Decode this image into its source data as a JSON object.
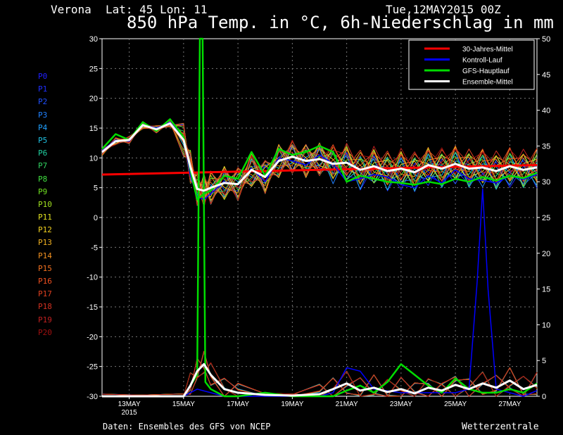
{
  "header": {
    "station": "Verona",
    "coords": "Lat: 45 Lon: 11",
    "run": "Tue,12MAY2015 00Z",
    "title": "850 hPa Temp. in °C, 6h-Niederschlag in mm"
  },
  "members": [
    {
      "label": "P0",
      "color": "#2020ff"
    },
    {
      "label": "P1",
      "color": "#2030ff"
    },
    {
      "label": "P2",
      "color": "#2050ff"
    },
    {
      "label": "P3",
      "color": "#2080ff"
    },
    {
      "label": "P4",
      "color": "#20a0ff"
    },
    {
      "label": "P5",
      "color": "#20c0e0"
    },
    {
      "label": "P6",
      "color": "#20d0a0"
    },
    {
      "label": "P7",
      "color": "#30d060"
    },
    {
      "label": "P8",
      "color": "#40e040"
    },
    {
      "label": "P9",
      "color": "#70e020"
    },
    {
      "label": "P10",
      "color": "#a0e020"
    },
    {
      "label": "P11",
      "color": "#e0e020"
    },
    {
      "label": "P12",
      "color": "#f0d020"
    },
    {
      "label": "P13",
      "color": "#f0b020"
    },
    {
      "label": "P14",
      "color": "#f09020"
    },
    {
      "label": "P15",
      "color": "#f07020"
    },
    {
      "label": "P16",
      "color": "#f05020"
    },
    {
      "label": "P17",
      "color": "#e04020"
    },
    {
      "label": "P18",
      "color": "#d03020"
    },
    {
      "label": "P19",
      "color": "#c02020"
    },
    {
      "label": "P20",
      "color": "#a01010"
    }
  ],
  "legend": [
    {
      "label": "30-Jahres-Mittel",
      "color": "#ff0000"
    },
    {
      "label": "Kontroll-Lauf",
      "color": "#0000ff"
    },
    {
      "label": "GFS-Hauptlauf",
      "color": "#00dd00"
    },
    {
      "label": "Ensemble-Mittel",
      "color": "#ffffff"
    }
  ],
  "footer": {
    "source": "Daten: Ensembles des GFS von NCEP",
    "brand": "Wetterzentrale"
  },
  "chart_data": {
    "type": "line",
    "title": "850 hPa Temp. in °C, 6h-Niederschlag in mm",
    "x_ticks": [
      "13MAY",
      "15MAY",
      "17MAY",
      "19MAY",
      "21MAY",
      "23MAY",
      "25MAY",
      "27MAY"
    ],
    "x_tick_extra": {
      "13MAY": "2015"
    },
    "x_range_days": [
      12.0,
      28.0
    ],
    "y_left": {
      "ticks": [
        30,
        25,
        20,
        15,
        10,
        5,
        0,
        -5,
        -10,
        -15,
        -20,
        -25,
        -30
      ],
      "range": [
        -30,
        30
      ],
      "unit": "°C"
    },
    "y_right": {
      "ticks": [
        50,
        45,
        40,
        35,
        30,
        25,
        20,
        15,
        10,
        5,
        0
      ],
      "range": [
        0,
        50
      ],
      "unit": "mm"
    },
    "grid": true,
    "legend_position": "top-right",
    "climate_mean": {
      "name": "30-Jahres-Mittel",
      "x": [
        12.0,
        28.0
      ],
      "y": [
        7.2,
        8.8
      ]
    },
    "ensemble_mean_temp": {
      "name": "Ensemble-Mittel",
      "x": [
        12.0,
        12.5,
        13.0,
        13.5,
        14.0,
        14.5,
        15.0,
        15.25,
        15.5,
        15.75,
        16.0,
        16.5,
        17.0,
        17.5,
        18.0,
        18.5,
        19.0,
        19.5,
        20.0,
        20.5,
        21.0,
        21.5,
        22.0,
        22.5,
        23.0,
        23.5,
        24.0,
        24.5,
        25.0,
        25.5,
        26.0,
        26.5,
        27.0,
        27.5,
        28.0
      ],
      "y": [
        11.0,
        12.8,
        13.0,
        15.5,
        14.8,
        15.8,
        13.0,
        8.5,
        4.8,
        4.5,
        5.0,
        5.8,
        5.6,
        8.0,
        6.8,
        9.5,
        10.2,
        9.5,
        9.8,
        9.0,
        9.2,
        8.0,
        8.6,
        7.8,
        8.2,
        7.6,
        8.8,
        8.2,
        9.0,
        8.2,
        8.4,
        7.8,
        8.6,
        8.0,
        8.4
      ]
    },
    "control_run_temp": {
      "name": "Kontroll-Lauf",
      "x": [
        12.0,
        12.5,
        13.0,
        13.5,
        14.0,
        14.5,
        15.0,
        15.25,
        15.5,
        15.75,
        16.0,
        16.5,
        17.0,
        17.5,
        18.0,
        18.5,
        19.0,
        19.5,
        20.0,
        20.5,
        21.0,
        21.5,
        22.0,
        22.5,
        23.0,
        23.5,
        24.0,
        24.5,
        25.0,
        25.5,
        26.0,
        26.5,
        27.0,
        27.5,
        28.0
      ],
      "y": [
        11.2,
        13.0,
        12.8,
        15.6,
        15.0,
        16.0,
        13.4,
        7.0,
        3.5,
        3.0,
        4.0,
        6.0,
        5.5,
        8.2,
        6.0,
        10.0,
        9.5,
        8.8,
        10.5,
        9.0,
        6.0,
        6.5,
        7.2,
        6.8,
        5.5,
        5.0,
        7.0,
        5.8,
        8.0,
        6.5,
        6.2,
        5.8,
        7.0,
        6.4,
        7.2
      ]
    },
    "gfs_main_temp": {
      "name": "GFS-Hauptlauf",
      "x": [
        12.0,
        12.5,
        13.0,
        13.5,
        14.0,
        14.5,
        15.0,
        15.25,
        15.5,
        15.75,
        16.0,
        16.5,
        17.0,
        17.5,
        18.0,
        18.5,
        19.0,
        19.5,
        20.0,
        20.5,
        21.0,
        21.5,
        22.0,
        22.5,
        23.0,
        23.5,
        24.0,
        24.5,
        25.0,
        25.5,
        26.0,
        26.5,
        27.0,
        27.5,
        28.0
      ],
      "y": [
        11.5,
        14.0,
        13.0,
        16.0,
        14.5,
        16.5,
        13.5,
        8.0,
        3.0,
        4.0,
        4.5,
        7.0,
        6.5,
        11.0,
        7.0,
        11.5,
        10.5,
        11.0,
        12.0,
        11.0,
        6.0,
        7.0,
        6.5,
        6.0,
        5.8,
        5.5,
        6.0,
        5.6,
        6.5,
        6.0,
        6.8,
        6.2,
        7.0,
        6.6,
        7.5
      ]
    },
    "ensemble_mean_precip": {
      "name": "Ensemble-Mittel",
      "x": [
        12.0,
        15.0,
        15.25,
        15.5,
        15.75,
        16.0,
        16.5,
        17.0,
        18.0,
        19.0,
        20.0,
        20.5,
        21.0,
        21.5,
        22.0,
        22.5,
        23.0,
        23.5,
        24.0,
        24.5,
        25.0,
        25.5,
        26.0,
        26.5,
        27.0,
        27.5,
        28.0
      ],
      "y": [
        0,
        0,
        1.5,
        3.5,
        4.5,
        3.0,
        1.0,
        0.5,
        0.2,
        0.1,
        0.3,
        1.0,
        1.8,
        0.8,
        1.2,
        0.6,
        1.0,
        0.4,
        1.2,
        0.8,
        1.6,
        1.0,
        1.8,
        1.2,
        2.2,
        1.0,
        1.6
      ]
    },
    "gfs_main_precip": {
      "name": "GFS-Hauptlauf",
      "x": [
        12.0,
        15.0,
        15.5,
        15.6,
        15.7,
        15.8,
        16.0,
        16.5,
        17.0,
        18.0,
        19.0,
        20.0,
        20.5,
        21.0,
        21.5,
        22.0,
        22.5,
        23.0,
        23.5,
        24.0,
        24.5,
        25.0,
        25.5,
        26.0,
        26.5,
        27.0,
        27.5,
        28.0
      ],
      "y": [
        0,
        0,
        3.0,
        50,
        50,
        2.0,
        1.0,
        0.0,
        0.0,
        0.5,
        0.0,
        0.0,
        0.0,
        0.8,
        1.5,
        0.5,
        2.0,
        4.5,
        3.0,
        1.5,
        0.5,
        2.5,
        1.0,
        0.5,
        0.5,
        1.0,
        0.5,
        1.8
      ]
    },
    "control_run_precip": {
      "name": "Kontroll-Lauf",
      "x": [
        12.0,
        15.0,
        15.5,
        16.0,
        16.5,
        17.0,
        18.0,
        19.0,
        20.0,
        20.5,
        21.0,
        21.5,
        22.0,
        23.0,
        24.0,
        25.0,
        25.5,
        25.8,
        26.0,
        26.2,
        26.5,
        27.0,
        27.5,
        28.0
      ],
      "y": [
        0,
        0,
        1.0,
        0.5,
        0.0,
        0.0,
        0.0,
        0.0,
        0.0,
        0.5,
        4.0,
        3.5,
        1.0,
        0.5,
        0.5,
        0.5,
        1.0,
        16.0,
        29.0,
        15.0,
        1.0,
        0.5,
        0.0,
        0.8
      ]
    }
  }
}
